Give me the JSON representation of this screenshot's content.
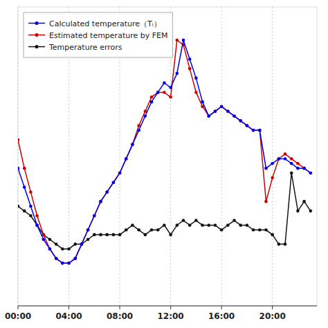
{
  "chart_data": {
    "type": "line",
    "x": [
      0,
      0.5,
      1,
      1.5,
      2,
      2.5,
      3,
      3.5,
      4,
      4.5,
      5,
      5.5,
      6,
      6.5,
      7,
      7.5,
      8,
      8.5,
      9,
      9.5,
      10,
      10.5,
      11,
      11.5,
      12,
      12.5,
      13,
      13.5,
      14,
      14.5,
      15,
      15.5,
      16,
      16.5,
      17,
      17.5,
      18,
      18.5,
      19,
      19.5,
      20,
      20.5,
      21,
      21.5,
      22,
      22.5,
      23
    ],
    "series": [
      {
        "name": "Calculated temperature（Tᵢ）",
        "color": "#0000ee",
        "marker": "circle",
        "values": [
          71,
          67,
          63,
          59,
          56,
          54,
          52,
          51,
          51,
          52,
          55,
          58,
          61,
          64,
          66,
          68,
          70,
          73,
          76,
          79,
          82,
          85,
          87,
          89,
          88,
          91,
          98,
          94,
          90,
          85,
          82,
          83,
          84,
          83,
          82,
          81,
          80,
          79,
          79,
          71,
          72,
          73,
          73,
          72,
          71,
          71,
          70
        ]
      },
      {
        "name": "Estimated temperature by FEM",
        "color": "#cc0000",
        "marker": "circle",
        "values": [
          77,
          71,
          66,
          61,
          57,
          54,
          52,
          51,
          51,
          52,
          55,
          58,
          61,
          64,
          66,
          68,
          70,
          73,
          76,
          80,
          83,
          86,
          87,
          87,
          86,
          98,
          97,
          92,
          87,
          84,
          82,
          83,
          84,
          83,
          82,
          81,
          80,
          79,
          79,
          64,
          69,
          73,
          74,
          73,
          72,
          71,
          70
        ]
      },
      {
        "name": "Temperature errors",
        "color": "#111111",
        "marker": "circle",
        "values": [
          63,
          62,
          61,
          59,
          57,
          56,
          55,
          54,
          54,
          55,
          55,
          56,
          57,
          57,
          57,
          57,
          57,
          58,
          59,
          58,
          57,
          58,
          58,
          59,
          57,
          59,
          60,
          59,
          60,
          59,
          59,
          59,
          58,
          59,
          60,
          59,
          59,
          58,
          58,
          58,
          57,
          55,
          55,
          70,
          62,
          64,
          62
        ]
      }
    ],
    "xlim": [
      0,
      23.5
    ],
    "ylim": [
      42,
      105
    ],
    "xticks": [
      {
        "value": 0,
        "label": "00:00"
      },
      {
        "value": 4,
        "label": "04:00"
      },
      {
        "value": 8,
        "label": "08:00"
      },
      {
        "value": 12,
        "label": "12:00"
      },
      {
        "value": 16,
        "label": "16:00"
      },
      {
        "value": 20,
        "label": "20:00"
      }
    ],
    "tick_labels": "x",
    "grid": true,
    "legend": "upper-left"
  }
}
